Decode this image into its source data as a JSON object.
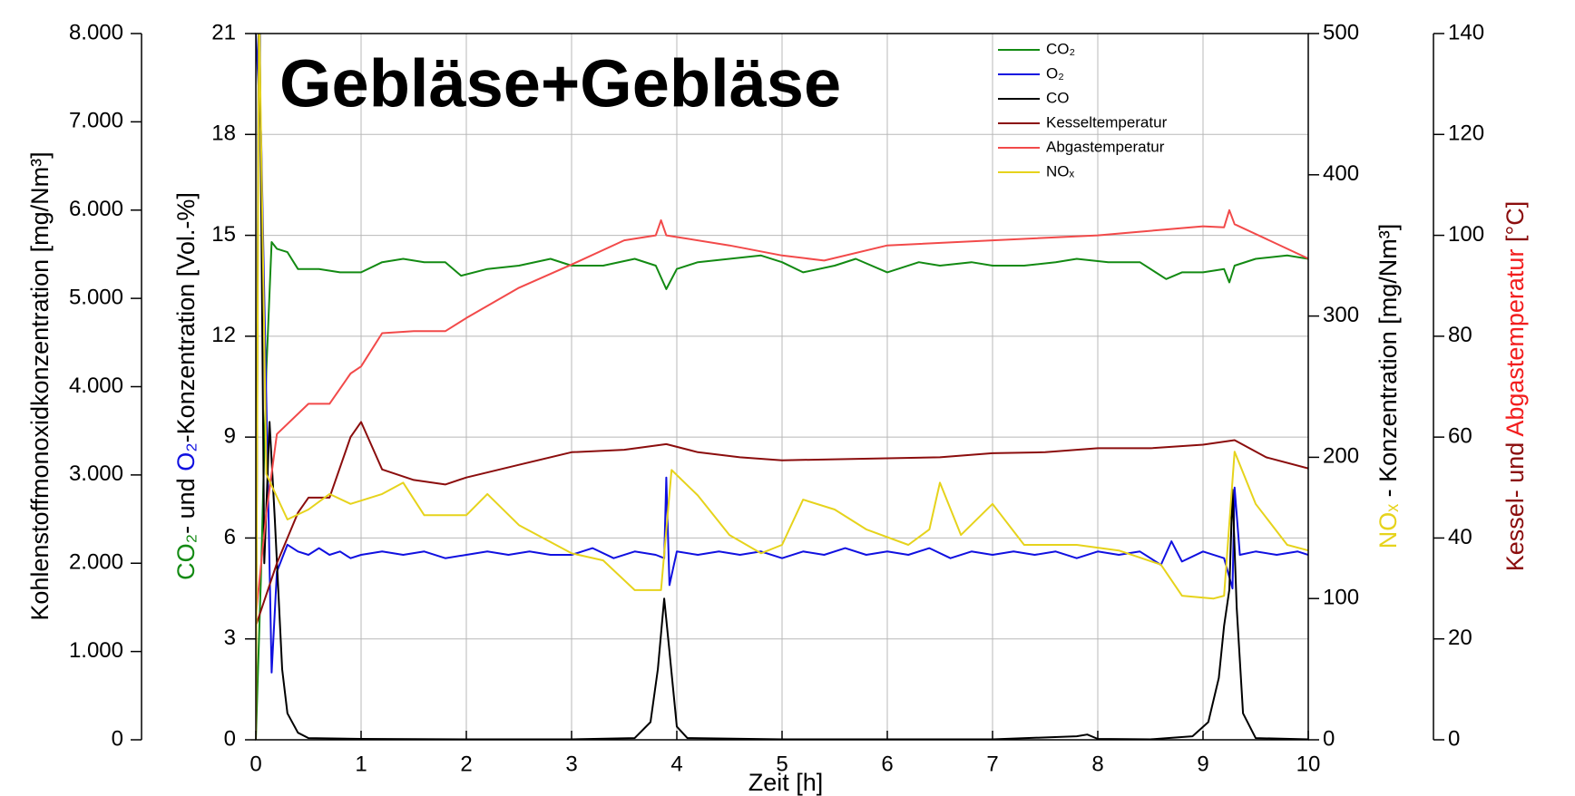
{
  "chart_data": {
    "type": "line",
    "title": "Gebläse+Gebläse",
    "xlabel": "Zeit [h]",
    "ylabel": [
      "CO₂",
      "- und ",
      "O₂",
      "-Konzentration [Vol.-%]"
    ],
    "y2label": "Kohlenstoffmonoxidkonzentration [mg/Nm³]",
    "y3label": [
      "NOₓ",
      " - Konzentration [mg/Nm³]"
    ],
    "y4label": [
      "Kessel- und ",
      "Abgastemperatur",
      " [°C]"
    ],
    "xlim": [
      0,
      10
    ],
    "xticks": [
      0,
      1,
      2,
      3,
      4,
      5,
      6,
      7,
      8,
      9,
      10
    ],
    "ylim": [
      0,
      21
    ],
    "yticks": [
      0,
      3,
      6,
      9,
      12,
      15,
      18,
      21
    ],
    "y2lim": [
      0,
      8000
    ],
    "y2ticks": [
      0,
      {
        "value": 1000,
        "label": "1.000"
      },
      {
        "value": 2000,
        "label": "2.000"
      },
      {
        "value": 3000,
        "label": "3.000"
      },
      {
        "value": 4000,
        "label": "4.000"
      },
      {
        "value": 5000,
        "label": "5.000"
      },
      {
        "value": 6000,
        "label": "6.000"
      },
      {
        "value": 7000,
        "label": "7.000"
      },
      {
        "value": 8000,
        "label": "8.000"
      }
    ],
    "y3lim": [
      0,
      500
    ],
    "y3ticks": [
      0,
      100,
      200,
      300,
      400,
      500
    ],
    "y4lim": [
      0,
      140
    ],
    "y4ticks": [
      0,
      20,
      40,
      60,
      80,
      100,
      120,
      140
    ],
    "grid": true,
    "legend": "top-right",
    "series": [
      {
        "name": "CO₂",
        "color": "#138a13",
        "axis": "y",
        "x": [
          0,
          0.05,
          0.1,
          0.15,
          0.2,
          0.3,
          0.4,
          0.6,
          0.8,
          1.0,
          1.2,
          1.4,
          1.6,
          1.8,
          1.95,
          2.2,
          2.5,
          2.8,
          3.0,
          3.3,
          3.6,
          3.8,
          3.9,
          4.0,
          4.2,
          4.5,
          4.8,
          5.0,
          5.2,
          5.5,
          5.7,
          6.0,
          6.3,
          6.5,
          6.8,
          7.0,
          7.3,
          7.6,
          7.8,
          8.1,
          8.4,
          8.55,
          8.65,
          8.8,
          9.0,
          9.2,
          9.25,
          9.3,
          9.5,
          9.8,
          10
        ],
        "values": [
          0,
          5,
          11,
          14.8,
          14.6,
          14.5,
          14.0,
          14.0,
          13.9,
          13.9,
          14.2,
          14.3,
          14.2,
          14.2,
          13.8,
          14.0,
          14.1,
          14.3,
          14.1,
          14.1,
          14.3,
          14.1,
          13.4,
          14.0,
          14.2,
          14.3,
          14.4,
          14.2,
          13.9,
          14.1,
          14.3,
          13.9,
          14.2,
          14.1,
          14.2,
          14.1,
          14.1,
          14.2,
          14.3,
          14.2,
          14.2,
          13.9,
          13.7,
          13.9,
          13.9,
          14.0,
          13.6,
          14.1,
          14.3,
          14.4,
          14.3
        ]
      },
      {
        "name": "O₂",
        "color": "#1010e0",
        "axis": "y",
        "x": [
          0,
          0.05,
          0.1,
          0.15,
          0.2,
          0.3,
          0.4,
          0.5,
          0.6,
          0.7,
          0.8,
          0.9,
          1.0,
          1.2,
          1.4,
          1.6,
          1.8,
          2.0,
          2.2,
          2.4,
          2.6,
          2.8,
          3.0,
          3.2,
          3.4,
          3.6,
          3.8,
          3.88,
          3.9,
          3.93,
          4.0,
          4.2,
          4.4,
          4.6,
          4.8,
          5.0,
          5.2,
          5.4,
          5.6,
          5.8,
          6.0,
          6.2,
          6.4,
          6.6,
          6.8,
          7.0,
          7.2,
          7.4,
          7.6,
          7.8,
          8.0,
          8.2,
          8.4,
          8.6,
          8.7,
          8.8,
          9.0,
          9.2,
          9.28,
          9.3,
          9.35,
          9.5,
          9.7,
          9.9,
          10
        ],
        "values": [
          21,
          18,
          10,
          2.0,
          5.0,
          5.8,
          5.6,
          5.5,
          5.7,
          5.5,
          5.6,
          5.4,
          5.5,
          5.6,
          5.5,
          5.6,
          5.4,
          5.5,
          5.6,
          5.5,
          5.6,
          5.5,
          5.5,
          5.7,
          5.4,
          5.6,
          5.5,
          5.4,
          7.8,
          4.6,
          5.6,
          5.5,
          5.6,
          5.5,
          5.6,
          5.4,
          5.6,
          5.5,
          5.7,
          5.5,
          5.6,
          5.5,
          5.7,
          5.4,
          5.6,
          5.5,
          5.6,
          5.5,
          5.6,
          5.4,
          5.6,
          5.5,
          5.6,
          5.2,
          5.9,
          5.3,
          5.6,
          5.4,
          4.5,
          7.5,
          5.5,
          5.6,
          5.5,
          5.6,
          5.5
        ]
      },
      {
        "name": "CO",
        "color": "#000000",
        "axis": "y2",
        "x": [
          0,
          0.03,
          0.08,
          0.13,
          0.18,
          0.25,
          0.3,
          0.4,
          0.5,
          1.0,
          2.0,
          3.0,
          3.6,
          3.75,
          3.82,
          3.88,
          3.93,
          4.0,
          4.1,
          5.0,
          6.0,
          7.0,
          7.8,
          7.9,
          8.0,
          8.5,
          8.9,
          9.05,
          9.15,
          9.2,
          9.25,
          9.28,
          9.32,
          9.38,
          9.5,
          10
        ],
        "values": [
          0,
          9000,
          2000,
          3600,
          2500,
          800,
          300,
          80,
          20,
          10,
          5,
          5,
          20,
          200,
          800,
          1600,
          1000,
          150,
          20,
          5,
          5,
          5,
          40,
          60,
          10,
          5,
          40,
          200,
          700,
          1290,
          1700,
          2834,
          1500,
          300,
          20,
          5
        ]
      },
      {
        "name": "Kesseltemperatur",
        "color": "#8b0d0d",
        "axis": "y4",
        "x": [
          0,
          0.2,
          0.4,
          0.5,
          0.7,
          0.9,
          1.0,
          1.2,
          1.5,
          1.8,
          2.0,
          2.5,
          3.0,
          3.5,
          3.9,
          4.2,
          4.6,
          5.0,
          5.5,
          6.0,
          6.5,
          7.0,
          7.5,
          8.0,
          8.5,
          9.0,
          9.3,
          9.6,
          10
        ],
        "values": [
          22.6,
          35,
          45,
          48,
          48,
          60,
          63,
          53.6,
          51.5,
          50.6,
          52,
          54.5,
          57,
          57.5,
          58.6,
          57,
          56,
          55.4,
          55.6,
          55.8,
          56,
          56.8,
          57,
          57.8,
          57.8,
          58.5,
          59.4,
          56,
          53.8
        ]
      },
      {
        "name": "Abgastemperatur",
        "color": "#f24a4a",
        "axis": "y4",
        "x": [
          0,
          0.1,
          0.2,
          0.5,
          0.7,
          0.9,
          1.0,
          1.2,
          1.5,
          1.8,
          2.0,
          2.5,
          3.0,
          3.5,
          3.8,
          3.85,
          3.9,
          4.5,
          5.0,
          5.4,
          6.0,
          7.0,
          8.0,
          9.0,
          9.2,
          9.25,
          9.3,
          10
        ],
        "values": [
          24.6,
          45,
          60.6,
          66.6,
          66.6,
          72.6,
          74,
          80.6,
          81,
          81,
          83.6,
          89.6,
          94.2,
          99,
          100,
          103,
          100,
          98,
          96,
          95,
          98,
          99,
          100,
          101.8,
          101.6,
          105,
          102.2,
          95.4
        ]
      },
      {
        "name": "NOₓ",
        "color": "#e6d31c",
        "axis": "y3",
        "x": [
          0,
          0.03,
          0.1,
          0.3,
          0.5,
          0.7,
          0.9,
          1.2,
          1.4,
          1.6,
          2.0,
          2.2,
          2.5,
          3.0,
          3.3,
          3.6,
          3.85,
          3.95,
          4.2,
          4.5,
          4.8,
          5.0,
          5.2,
          5.5,
          5.8,
          6.2,
          6.4,
          6.5,
          6.7,
          7.0,
          7.3,
          7.8,
          8.2,
          8.6,
          8.8,
          9.1,
          9.2,
          9.3,
          9.5,
          9.8,
          10
        ],
        "values": [
          0,
          520,
          188,
          156,
          163,
          174,
          167,
          174,
          182,
          159,
          159,
          174,
          152,
          132,
          127,
          106,
          106,
          191,
          173,
          145,
          132,
          138,
          170,
          163,
          149,
          138,
          149,
          182,
          145,
          167,
          138,
          138,
          134,
          124,
          102,
          100,
          102,
          204,
          167,
          138,
          134
        ]
      }
    ]
  }
}
